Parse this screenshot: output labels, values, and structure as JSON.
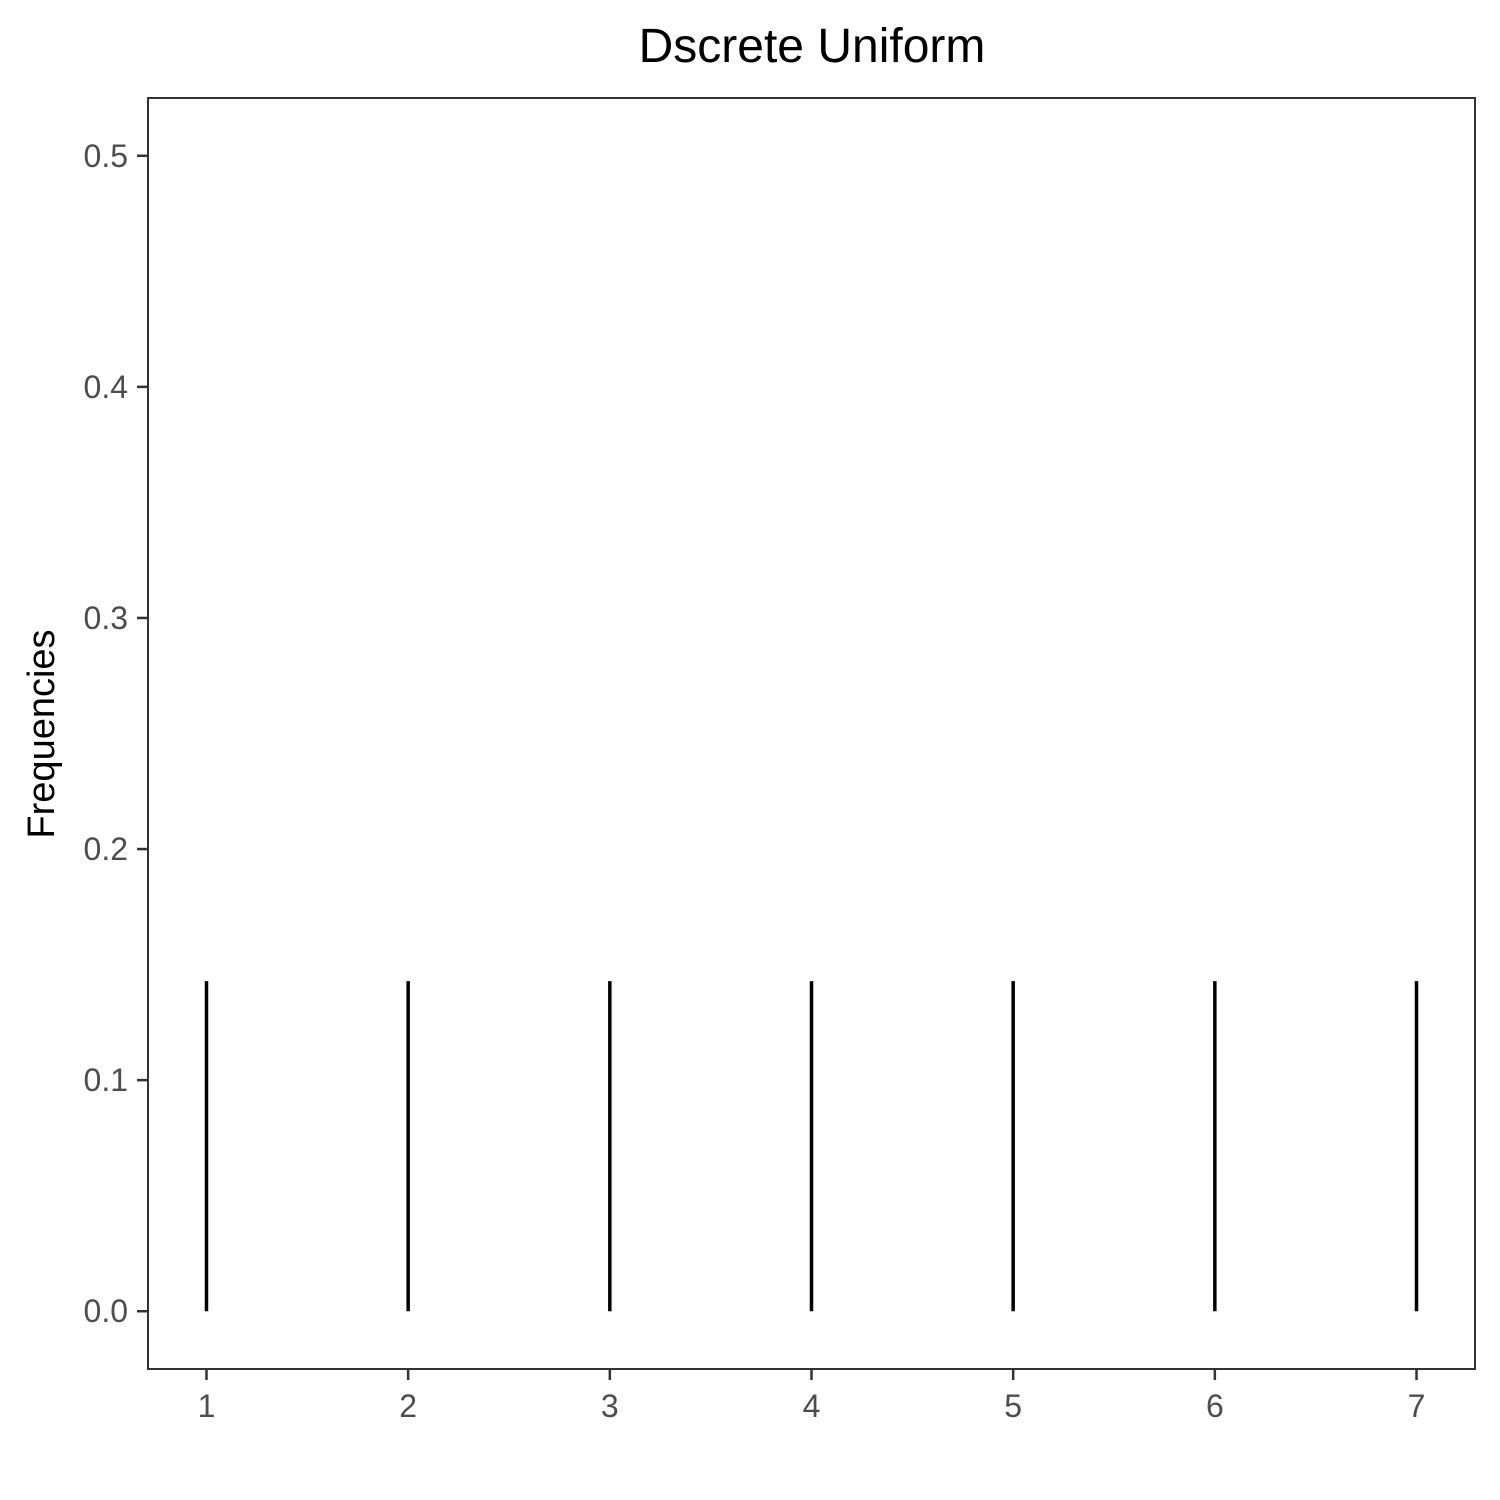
{
  "chart_data": {
    "type": "bar",
    "title": "Dscrete Uniform",
    "xlabel": "",
    "ylabel": "Frequencies",
    "x": [
      1,
      2,
      3,
      4,
      5,
      6,
      7
    ],
    "values": [
      0.142857,
      0.142857,
      0.142857,
      0.142857,
      0.142857,
      0.142857,
      0.142857
    ],
    "x_ticks": [
      "1",
      "2",
      "3",
      "4",
      "5",
      "6",
      "7"
    ],
    "y_ticks": [
      "0.0",
      "0.1",
      "0.2",
      "0.3",
      "0.4",
      "0.5"
    ],
    "y_tick_values": [
      0.0,
      0.1,
      0.2,
      0.3,
      0.4,
      0.5
    ],
    "xlim": [
      0.71,
      7.29
    ],
    "ylim": [
      -0.025,
      0.525
    ],
    "grid": false,
    "legend": "none",
    "colors": {
      "lines": "#000000",
      "panel_border": "#333333",
      "tick_text": "#4d4d4d"
    }
  }
}
